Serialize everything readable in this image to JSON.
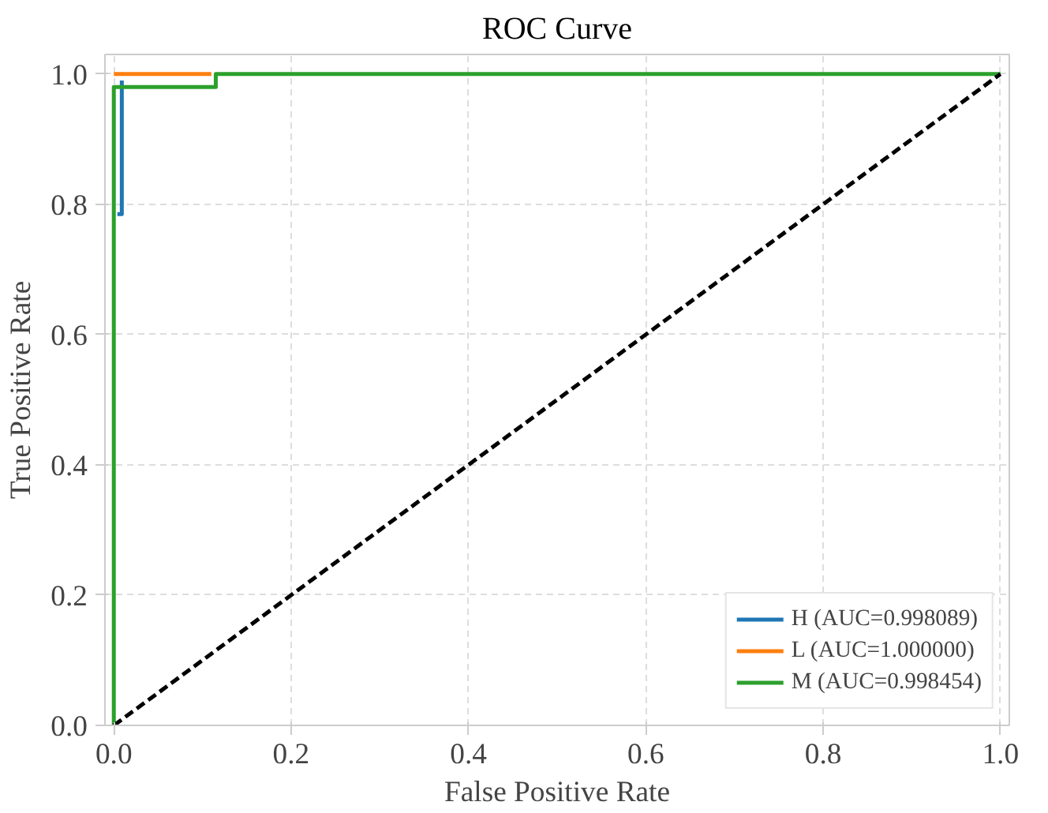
{
  "chart_data": {
    "type": "line",
    "title": "ROC Curve",
    "xlabel": "False Positive Rate",
    "ylabel": "True Positive Rate",
    "xlim": [
      -0.01,
      1.01
    ],
    "ylim": [
      0,
      1.03
    ],
    "xticks": [
      {
        "value": 0,
        "label": "0.0"
      },
      0.2,
      0.4,
      0.6,
      0.8,
      {
        "value": 1,
        "label": "1.0"
      }
    ],
    "yticks": [
      {
        "value": 0,
        "label": "0.0"
      },
      0.2,
      0.4,
      0.6,
      0.8,
      {
        "value": 1,
        "label": "1.0"
      }
    ],
    "grid": true,
    "legend": "bottom right",
    "marker": "none",
    "series": [
      {
        "name": "H (AUC=0.998089)",
        "color": "#1f77b4",
        "x": [
          0.004,
          0.009,
          0.009
        ],
        "values": [
          0.785,
          0.785,
          0.99
        ]
      },
      {
        "name": "L (AUC=1.000000)",
        "color": "#ff7f0e",
        "x": [
          0,
          0.11
        ],
        "values": [
          1.0,
          1.0
        ]
      },
      {
        "name": "M (AUC=0.998454)",
        "color": "#2ca02c",
        "x": [
          0,
          0,
          0.115,
          0.115,
          1
        ],
        "values": [
          0,
          0.98,
          0.98,
          1.0,
          1.0
        ]
      },
      {
        "color": "#000000",
        "line_style": "dashed",
        "x": [
          0,
          1
        ],
        "values": [
          0,
          1
        ]
      }
    ]
  }
}
